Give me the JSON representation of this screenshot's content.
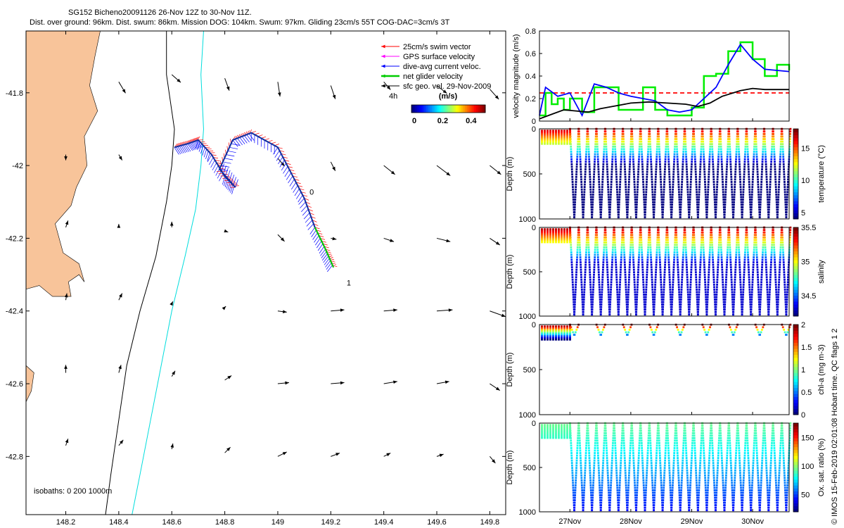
{
  "title": {
    "line1": "SG152 Bicheno20091126 26-Nov 12Z to 30-Nov 11Z.",
    "line2": "Dist. over ground: 96km. Dist. swum: 86km. Mission DOG: 104km. Swum: 97km. Gliding 23cm/s 55T COG-DAC=3cm/s 3T"
  },
  "copyright": "© IMOS 15-Feb-2019 02:01:08 Hobart time. QC flags 1  2",
  "colors": {
    "land": "#f8c49a",
    "coast": "#000000",
    "isobath200": "#00dddd",
    "swim": "#ff0000",
    "gps": "#ff00ff",
    "dac": "#0000ff",
    "net": "#00cc00",
    "sfc": "#000000"
  },
  "chart_data": [
    {
      "type": "map",
      "xlim": [
        148.05,
        149.86
      ],
      "ylim": [
        -42.96,
        -41.63
      ],
      "x_ticks": [
        "148.2",
        "148.4",
        "148.6",
        "148.8",
        "149",
        "149.2",
        "149.4",
        "149.6",
        "149.8"
      ],
      "x_tick_values": [
        148.2,
        148.4,
        148.6,
        148.8,
        149.0,
        149.2,
        149.4,
        149.6,
        149.8
      ],
      "y_ticks": [
        "-41.8",
        "-42",
        "-42.2",
        "-42.4",
        "-42.6",
        "-42.8"
      ],
      "y_tick_values": [
        -41.8,
        -42.0,
        -42.2,
        -42.4,
        -42.6,
        -42.8
      ],
      "legend": [
        {
          "label": "25cm/s swim vector",
          "color": "#ff0000"
        },
        {
          "label": "GPS surface velocity",
          "color": "#ff00ff"
        },
        {
          "label": "dive-avg current veloc.",
          "color": "#0000ff"
        },
        {
          "label": "net glider velocity",
          "color": "#00cc00"
        },
        {
          "label": "sfc geo. vel. 29-Nov-2009",
          "color": "#000000"
        }
      ],
      "annotation_4h": "4h",
      "colorbar": {
        "title": "(m/s)",
        "ticks": [
          "0",
          "0.2",
          "0.4"
        ],
        "tick_values": [
          0,
          0.2,
          0.4
        ],
        "range": [
          -0.02,
          0.5
        ]
      },
      "isobaths_text": "isobaths: 0   200  1000m",
      "track_labels": [
        "0",
        "1"
      ],
      "track": [
        [
          148.61,
          -41.95
        ],
        [
          148.66,
          -41.94
        ],
        [
          148.7,
          -41.93
        ],
        [
          148.75,
          -41.97
        ],
        [
          148.8,
          -42.03
        ],
        [
          148.84,
          -42.06
        ],
        [
          148.78,
          -42.01
        ],
        [
          148.83,
          -41.93
        ],
        [
          148.9,
          -41.91
        ],
        [
          149.0,
          -41.95
        ],
        [
          149.05,
          -42.02
        ],
        [
          149.1,
          -42.09
        ],
        [
          149.14,
          -42.17
        ],
        [
          149.18,
          -42.23
        ],
        [
          149.21,
          -42.28
        ]
      ],
      "geo_vectors": [
        [
          148.4,
          -41.77,
          0.6,
          -1.0
        ],
        [
          148.6,
          -41.75,
          0.8,
          -0.7
        ],
        [
          148.8,
          -41.76,
          0.4,
          -1.1
        ],
        [
          149.0,
          -41.77,
          0.2,
          -1.3
        ],
        [
          149.2,
          -41.78,
          0.4,
          -1.2
        ],
        [
          149.4,
          -41.77,
          0.6,
          -0.7
        ],
        [
          149.6,
          -41.78,
          0.9,
          -0.7
        ],
        [
          149.8,
          -41.79,
          0.8,
          -0.9
        ],
        [
          148.2,
          -41.97,
          0.0,
          -0.5
        ],
        [
          148.4,
          -41.97,
          0.3,
          -0.5
        ],
        [
          149.0,
          -41.98,
          0.6,
          -0.7
        ],
        [
          149.2,
          -41.99,
          0.4,
          -0.8
        ],
        [
          149.4,
          -42.0,
          1.0,
          -0.8
        ],
        [
          149.6,
          -42.0,
          1.2,
          -0.9
        ],
        [
          149.8,
          -42.0,
          1.0,
          -0.8
        ],
        [
          148.2,
          -42.17,
          0.2,
          0.6
        ],
        [
          148.4,
          -42.17,
          0.0,
          0.3
        ],
        [
          148.6,
          -42.17,
          0.0,
          0.5
        ],
        [
          148.8,
          -42.18,
          0.3,
          -0.1
        ],
        [
          149.0,
          -42.19,
          0.6,
          -0.6
        ],
        [
          149.2,
          -42.2,
          0.5,
          -0.1
        ],
        [
          149.4,
          -42.2,
          0.9,
          -0.3
        ],
        [
          149.6,
          -42.2,
          1.2,
          -0.3
        ],
        [
          149.8,
          -42.2,
          0.9,
          -0.6
        ],
        [
          148.2,
          -42.37,
          0.1,
          0.6
        ],
        [
          148.4,
          -42.37,
          0.3,
          0.6
        ],
        [
          148.6,
          -42.38,
          0.1,
          0.2
        ],
        [
          148.8,
          -42.39,
          0.1,
          0.1
        ],
        [
          149.0,
          -42.4,
          0.8,
          -0.1
        ],
        [
          149.2,
          -42.4,
          1.2,
          0.1
        ],
        [
          149.4,
          -42.4,
          1.2,
          0.1
        ],
        [
          149.6,
          -42.4,
          1.4,
          0.1
        ],
        [
          149.8,
          -42.4,
          1.4,
          -0.5
        ],
        [
          148.2,
          -42.57,
          0.0,
          0.7
        ],
        [
          148.4,
          -42.57,
          0.2,
          0.7
        ],
        [
          148.6,
          -42.58,
          0.3,
          0.5
        ],
        [
          148.8,
          -42.59,
          0.6,
          0.4
        ],
        [
          149.0,
          -42.6,
          1.0,
          0.1
        ],
        [
          149.2,
          -42.6,
          1.2,
          0.1
        ],
        [
          149.4,
          -42.6,
          1.2,
          0.2
        ],
        [
          149.6,
          -42.6,
          1.1,
          0.2
        ],
        [
          149.8,
          -42.6,
          0.9,
          -0.6
        ],
        [
          148.2,
          -42.77,
          0.2,
          0.6
        ],
        [
          148.4,
          -42.77,
          0.4,
          0.5
        ],
        [
          148.6,
          -42.78,
          0.1,
          0.5
        ],
        [
          148.8,
          -42.79,
          0.5,
          0.5
        ],
        [
          149.0,
          -42.8,
          0.8,
          0.4
        ],
        [
          149.2,
          -42.8,
          0.8,
          0.3
        ],
        [
          149.4,
          -42.8,
          0.6,
          0.3
        ],
        [
          149.6,
          -42.8,
          0.6,
          0.2
        ],
        [
          149.8,
          -42.8,
          0.5,
          -0.6
        ]
      ]
    },
    {
      "type": "line",
      "ylabel": "velocity magnitude (m/s)",
      "ylim": [
        0,
        0.8
      ],
      "y_ticks": [
        "0",
        "0.2",
        "0.4",
        "0.6",
        "0.8"
      ],
      "xlim": [
        26.5,
        30.6
      ],
      "series": [
        {
          "color": "#ff0000",
          "dashed": true,
          "x": [
            26.5,
            30.6
          ],
          "y": [
            0.25,
            0.25
          ]
        },
        {
          "color": "#00ee00",
          "x": [
            26.5,
            26.6,
            26.7,
            26.8,
            26.9,
            27.0,
            27.2,
            27.4,
            27.6,
            27.8,
            28.0,
            28.2,
            28.4,
            28.6,
            28.8,
            29.0,
            29.2,
            29.4,
            29.6,
            29.8,
            30.0,
            30.2,
            30.4,
            30.6
          ],
          "y": [
            0.05,
            0.25,
            0.15,
            0.2,
            0.1,
            0.2,
            0.08,
            0.3,
            0.3,
            0.1,
            0.1,
            0.3,
            0.1,
            0.05,
            0.05,
            0.12,
            0.4,
            0.42,
            0.62,
            0.7,
            0.55,
            0.4,
            0.5,
            0.45
          ]
        },
        {
          "color": "#0000ff",
          "x": [
            26.5,
            26.6,
            26.8,
            27.0,
            27.2,
            27.4,
            27.6,
            27.8,
            28.0,
            28.2,
            28.4,
            28.6,
            28.8,
            29.0,
            29.2,
            29.4,
            29.6,
            29.8,
            30.0,
            30.2,
            30.4,
            30.6
          ],
          "y": [
            0.05,
            0.3,
            0.22,
            0.25,
            0.05,
            0.33,
            0.3,
            0.25,
            0.22,
            0.2,
            0.18,
            0.1,
            0.08,
            0.1,
            0.2,
            0.3,
            0.5,
            0.68,
            0.55,
            0.46,
            0.45,
            0.44
          ]
        },
        {
          "color": "#000000",
          "x": [
            26.5,
            26.7,
            26.9,
            27.1,
            27.3,
            27.5,
            27.8,
            28.0,
            28.3,
            28.6,
            28.9,
            29.1,
            29.3,
            29.5,
            29.8,
            30.0,
            30.2,
            30.6
          ],
          "y": [
            0.02,
            0.06,
            0.1,
            0.09,
            0.08,
            0.11,
            0.14,
            0.16,
            0.17,
            0.16,
            0.15,
            0.13,
            0.16,
            0.22,
            0.27,
            0.29,
            0.28,
            0.28
          ]
        }
      ]
    },
    {
      "type": "scatter",
      "ylabel": "Depth (m)",
      "colorbar_label": "temperature (°C)",
      "ylim": [
        1000,
        0
      ],
      "y_ticks": [
        "0",
        "500",
        "1000"
      ],
      "clim": [
        4,
        18
      ],
      "cbar_ticks": [
        "5",
        "10",
        "15"
      ],
      "cbar_tick_values": [
        5,
        10,
        15
      ],
      "surface_value": 17,
      "bottom_value": 4,
      "cline_depth": 400,
      "deep_dives": true
    },
    {
      "type": "scatter",
      "ylabel": "Depth (m)",
      "colorbar_label": "salinity",
      "ylim": [
        1000,
        0
      ],
      "y_ticks": [
        "0",
        "500",
        "1000"
      ],
      "clim": [
        34.2,
        35.5
      ],
      "cbar_ticks": [
        "34.5",
        "35",
        "35.5"
      ],
      "cbar_tick_values": [
        34.5,
        35,
        35.5
      ],
      "surface_value": 35.45,
      "bottom_value": 34.3,
      "cline_depth": 400,
      "deep_dives": true
    },
    {
      "type": "scatter",
      "ylabel": "Depth (m)",
      "colorbar_label": "chl-a (mg m-3)",
      "ylim": [
        1000,
        0
      ],
      "y_ticks": [
        "0",
        "500",
        "1000"
      ],
      "clim": [
        0,
        2
      ],
      "cbar_ticks": [
        "0",
        "0.5",
        "1",
        "1.5",
        "2"
      ],
      "cbar_tick_values": [
        0,
        0.5,
        1,
        1.5,
        2
      ],
      "surface_value": 2,
      "bottom_value": 0,
      "cline_depth": 150,
      "deep_dives": false
    },
    {
      "type": "scatter",
      "ylabel": "Depth (m)",
      "colorbar_label": "Ox. sat. ratio (%)",
      "ylim": [
        1000,
        0
      ],
      "y_ticks": [
        "0",
        "500",
        "1000"
      ],
      "clim": [
        20,
        175
      ],
      "cbar_ticks": [
        "50",
        "100",
        "150"
      ],
      "cbar_tick_values": [
        50,
        100,
        150
      ],
      "surface_value": 95,
      "bottom_value": 40,
      "cline_depth": 1000,
      "deep_dives": true
    }
  ],
  "time_axis": {
    "labels": [
      "27Nov",
      "28Nov",
      "29Nov",
      "30Nov"
    ],
    "values": [
      27,
      28,
      29,
      30
    ],
    "xlim": [
      26.5,
      30.6
    ]
  }
}
